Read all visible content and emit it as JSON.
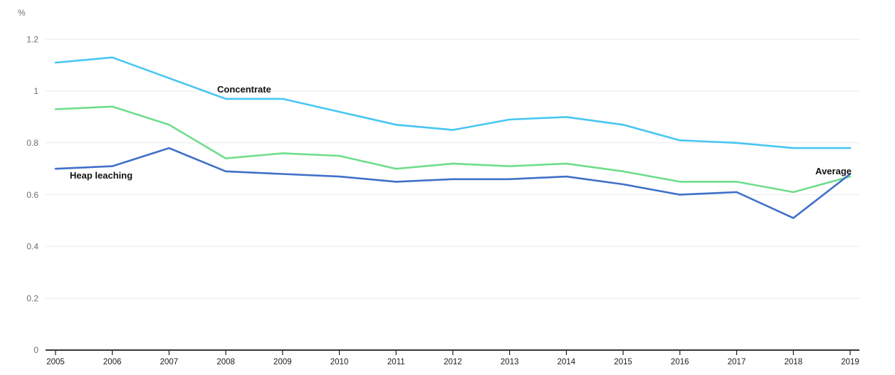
{
  "chart_data": {
    "type": "line",
    "ylabel": "%",
    "xlabel": "",
    "x": [
      2005,
      2006,
      2007,
      2008,
      2009,
      2010,
      2011,
      2012,
      2013,
      2014,
      2015,
      2016,
      2017,
      2018,
      2019
    ],
    "series": [
      {
        "name": "Concentrate",
        "color": "#47c6f3",
        "values": [
          1.11,
          1.13,
          1.05,
          0.97,
          0.97,
          0.92,
          0.87,
          0.85,
          0.89,
          0.9,
          0.87,
          0.81,
          0.8,
          0.78,
          0.78
        ]
      },
      {
        "name": "Average",
        "color": "#6fdd8b",
        "values": [
          0.93,
          0.94,
          0.87,
          0.74,
          0.76,
          0.75,
          0.7,
          0.72,
          0.71,
          0.72,
          0.69,
          0.65,
          0.65,
          0.61,
          0.67
        ]
      },
      {
        "name": "Heap leaching",
        "color": "#3f70c8",
        "values": [
          0.7,
          0.71,
          0.78,
          0.69,
          0.68,
          0.67,
          0.65,
          0.66,
          0.66,
          0.67,
          0.64,
          0.6,
          0.61,
          0.51,
          0.68
        ]
      }
    ],
    "ylim": [
      0,
      1.2
    ],
    "yticks": [
      {
        "label": "0",
        "value": 0
      },
      {
        "label": "0.2",
        "value": 0.2
      },
      {
        "label": "0.4",
        "value": 0.4
      },
      {
        "label": "0.6",
        "value": 0.6
      },
      {
        "label": "0.8",
        "value": 0.8
      },
      {
        "label": "1",
        "value": 1
      },
      {
        "label": "1.2",
        "value": 1.2
      }
    ],
    "grid": true,
    "legend": "inline-line-labels",
    "colors": {
      "concentrate_line": "#47c6f3",
      "average_line": "#6fdd8b",
      "heap_leaching_line": "#3f70c8",
      "gridline": "#e9e9e9",
      "axis": "#1a1a1a",
      "ytick_text": "#6b6f72",
      "xtick_text": "#1d1d1f",
      "series_label_text": "#111111",
      "background": "#ffffff"
    }
  }
}
